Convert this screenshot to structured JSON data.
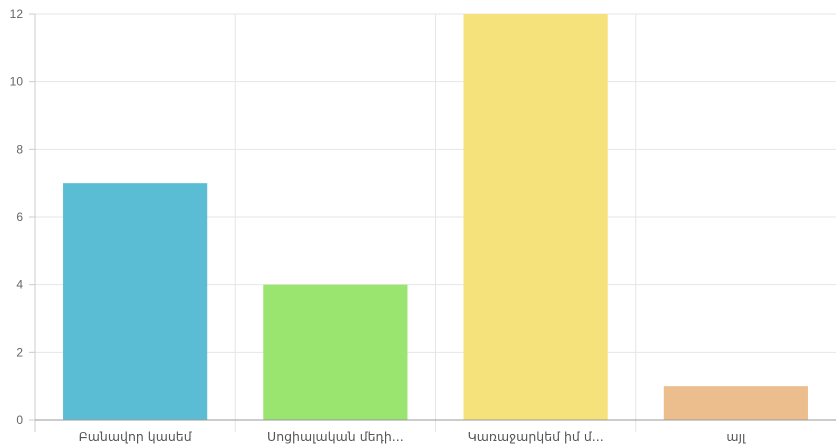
{
  "chart_data": {
    "type": "bar",
    "categories": [
      "Բանավոր կասեմ",
      "Սոցիալական մեդի...",
      "Կառաջարկեմ իմ մ...",
      "այլ"
    ],
    "values": [
      7,
      4,
      12,
      1
    ],
    "colors": [
      "#5bbdd3",
      "#99e570",
      "#f5e27a",
      "#edbe8d"
    ],
    "ylim": [
      0,
      12
    ],
    "yticks": [
      0,
      2,
      4,
      6,
      8,
      10,
      12
    ],
    "grid": true,
    "legend": "none",
    "title": "",
    "xlabel": "",
    "ylabel": ""
  }
}
